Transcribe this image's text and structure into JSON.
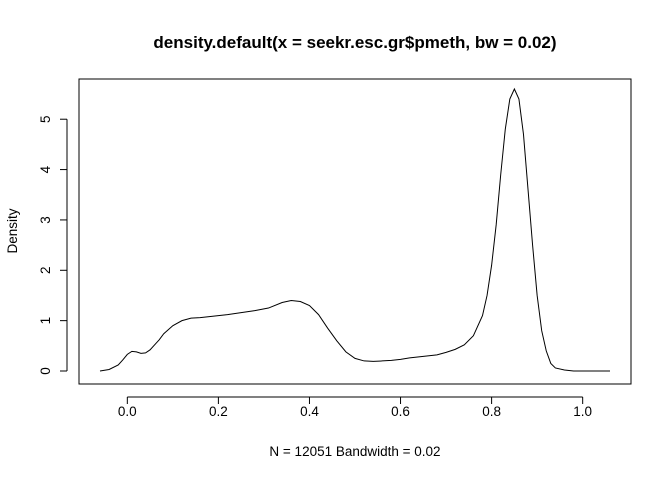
{
  "chart_data": {
    "type": "line",
    "title": "density.default(x = seekr.esc.gr$pmeth, bw = 0.02)",
    "xlabel": "N = 12051   Bandwidth = 0.02",
    "ylabel": "Density",
    "xlim": [
      -0.06,
      1.06
    ],
    "ylim": [
      0,
      5.6
    ],
    "x_ticks": [
      0.0,
      0.2,
      0.4,
      0.6,
      0.8,
      1.0
    ],
    "x_tick_labels": [
      "0.0",
      "0.2",
      "0.4",
      "0.6",
      "0.8",
      "1.0"
    ],
    "y_ticks": [
      0,
      1,
      2,
      3,
      4,
      5
    ],
    "y_tick_labels": [
      "0",
      "1",
      "2",
      "3",
      "4",
      "5"
    ],
    "grid": false,
    "legend": "none",
    "series": [
      {
        "x": [
          -0.06,
          -0.04,
          -0.02,
          -0.01,
          0.0,
          0.01,
          0.02,
          0.03,
          0.04,
          0.05,
          0.06,
          0.07,
          0.08,
          0.1,
          0.12,
          0.14,
          0.16,
          0.18,
          0.2,
          0.22,
          0.25,
          0.28,
          0.31,
          0.34,
          0.36,
          0.38,
          0.4,
          0.42,
          0.44,
          0.46,
          0.48,
          0.5,
          0.52,
          0.54,
          0.56,
          0.58,
          0.6,
          0.62,
          0.64,
          0.66,
          0.68,
          0.7,
          0.72,
          0.74,
          0.76,
          0.78,
          0.79,
          0.8,
          0.81,
          0.82,
          0.83,
          0.84,
          0.85,
          0.86,
          0.87,
          0.88,
          0.89,
          0.9,
          0.91,
          0.92,
          0.93,
          0.94,
          0.96,
          0.98,
          1.0,
          1.03,
          1.06
        ],
        "y": [
          0.0,
          0.03,
          0.12,
          0.22,
          0.33,
          0.39,
          0.38,
          0.35,
          0.36,
          0.42,
          0.52,
          0.62,
          0.74,
          0.9,
          1.0,
          1.05,
          1.06,
          1.08,
          1.1,
          1.12,
          1.16,
          1.2,
          1.25,
          1.36,
          1.4,
          1.38,
          1.3,
          1.12,
          0.85,
          0.6,
          0.38,
          0.25,
          0.2,
          0.19,
          0.2,
          0.21,
          0.23,
          0.26,
          0.28,
          0.3,
          0.32,
          0.37,
          0.43,
          0.52,
          0.7,
          1.1,
          1.5,
          2.1,
          2.9,
          3.9,
          4.8,
          5.4,
          5.6,
          5.4,
          4.7,
          3.6,
          2.5,
          1.5,
          0.8,
          0.4,
          0.15,
          0.06,
          0.02,
          0.0,
          0.0,
          0.0,
          0.0
        ]
      }
    ]
  }
}
